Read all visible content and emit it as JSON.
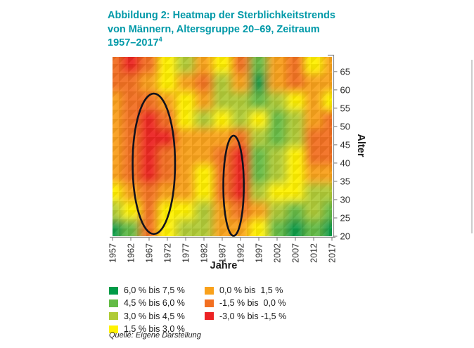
{
  "title": {
    "line1": "Abbildung 2: Heatmap der Sterblichkeitstrends",
    "line2": "von Männern, Altersgruppe 20–69, Zeitraum",
    "line3_base": "1957–2017",
    "line3_sup": "4"
  },
  "colors": {
    "title": "#0099A8",
    "axis_line": "#8A8A8A",
    "tick_text": "#2D2D2C",
    "axis_title_text": "#1A1A1A",
    "legend_text": "#1A1A1A",
    "source_text": "#1A1A1A",
    "annotation_stroke": "#12121C",
    "background": "#FFFFFF",
    "page_edge_line": "#CCCCCC"
  },
  "chart_data": {
    "type": "heatmap",
    "title": "Heatmap der Sterblichkeitstrends von Männern, Altersgruppe 20–69, Zeitraum 1957–2017",
    "xlabel": "Jahre",
    "ylabel": "Alter",
    "x_ticks": [
      1957,
      1962,
      1967,
      1972,
      1977,
      1982,
      1987,
      1992,
      1997,
      2002,
      2007,
      2012,
      2017
    ],
    "y_ticks": [
      65,
      60,
      55,
      50,
      45,
      40,
      35,
      30,
      25,
      20
    ],
    "x_range": [
      1957,
      2017
    ],
    "y_range": [
      20,
      69
    ],
    "grid_on": false,
    "legend_position": "bottom",
    "categories": [
      {
        "code": "DG",
        "label": "6,0 % bis 7,5 %",
        "color": "#009B48"
      },
      {
        "code": "MG",
        "label": "4,5 % bis 6,0 %",
        "color": "#63BB46"
      },
      {
        "code": "LG",
        "label": "3,0 % bis 4,5 %",
        "color": "#AFCB37"
      },
      {
        "code": "Y",
        "label": "1,5 % bis 3,0 %",
        "color": "#FFF200"
      },
      {
        "code": "O",
        "label": "0,0 % bis  1,5 %",
        "color": "#F9A11B"
      },
      {
        "code": "DO",
        "label": "-1,5 % bis  0,0 %",
        "color": "#F26F21"
      },
      {
        "code": "R",
        "label": "-3,0 % bis -1,5 %",
        "color": "#EC2224"
      }
    ],
    "grid_years": [
      1957,
      1962,
      1967,
      1972,
      1977,
      1982,
      1987,
      1992,
      1997,
      2002,
      2007,
      2012,
      2017
    ],
    "grid_ages": [
      67,
      62,
      57,
      52,
      47,
      42,
      37,
      32,
      27,
      22
    ],
    "grid": [
      [
        "DO",
        "R",
        "DO",
        "Y",
        "LG",
        "O",
        "Y",
        "DO",
        "MG",
        "O",
        "DO",
        "Y",
        "O"
      ],
      [
        "DO",
        "DO",
        "O",
        "Y",
        "O",
        "DO",
        "LG",
        "O",
        "DG",
        "O",
        "DO",
        "O",
        "O"
      ],
      [
        "O",
        "DO",
        "DO",
        "O",
        "Y",
        "O",
        "LG",
        "LG",
        "MG",
        "LG",
        "Y",
        "O",
        "Y"
      ],
      [
        "O",
        "DO",
        "R",
        "DO",
        "Y",
        "LG",
        "Y",
        "LG",
        "Y",
        "MG",
        "LG",
        "O",
        "DO"
      ],
      [
        "O",
        "DO",
        "R",
        "R",
        "O",
        "O",
        "O",
        "DO",
        "LG",
        "MG",
        "LG",
        "DO",
        "DO"
      ],
      [
        "O",
        "DO",
        "R",
        "DO",
        "O",
        "O",
        "DO",
        "R",
        "MG",
        "LG",
        "Y",
        "DO",
        "DO"
      ],
      [
        "O",
        "DO",
        "R",
        "DO",
        "O",
        "Y",
        "DO",
        "R",
        "MG",
        "LG",
        "Y",
        "O",
        "O"
      ],
      [
        "Y",
        "O",
        "DO",
        "O",
        "O",
        "Y",
        "DO",
        "R",
        "LG",
        "Y",
        "Y",
        "LG",
        "LG"
      ],
      [
        "LG",
        "Y",
        "DO",
        "Y",
        "Y",
        "LG",
        "O",
        "DO",
        "O",
        "LG",
        "MG",
        "LG",
        "MG"
      ],
      [
        "DG",
        "MG",
        "DO",
        "Y",
        "LG",
        "LG",
        "O",
        "O",
        "Y",
        "MG",
        "DG",
        "MG",
        "DG"
      ]
    ],
    "annotations": [
      {
        "shape": "ellipse",
        "cx_year": 1968.3,
        "cy_age": 39.8,
        "rx_years": 5.8,
        "ry_ages": 19.2
      },
      {
        "shape": "ellipse",
        "cx_year": 1990.1,
        "cy_age": 33.8,
        "rx_years": 2.8,
        "ry_ages": 13.7
      }
    ]
  },
  "legend": {
    "columns": [
      {
        "codes": [
          "DG",
          "MG",
          "LG",
          "Y"
        ]
      },
      {
        "codes": [
          "O",
          "DO",
          "R"
        ]
      }
    ]
  },
  "source": "Quelle: Eigene Darstellung"
}
